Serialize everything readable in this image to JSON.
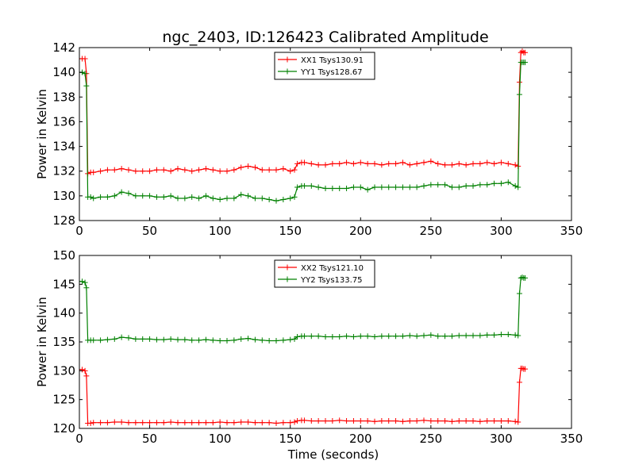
{
  "title": "ngc_2403, ID:126423 Calibrated Amplitude",
  "colors": {
    "series_a": "#ff0000",
    "series_b": "#008000",
    "axis": "#000000",
    "background": "#ffffff"
  },
  "chart_data": [
    {
      "type": "line",
      "title": "ngc_2403, ID:126423 Calibrated Amplitude",
      "xlabel": "",
      "ylabel": "Power in Kelvin",
      "xlim": [
        0,
        350
      ],
      "ylim": [
        128,
        142
      ],
      "xticks": [
        "0",
        "50",
        "100",
        "150",
        "200",
        "250",
        "300",
        "350"
      ],
      "yticks": [
        "128",
        "130",
        "132",
        "134",
        "136",
        "138",
        "140",
        "142"
      ],
      "grid": false,
      "legend_position": "top-center",
      "series": [
        {
          "name": "XX1 Tsys130.91",
          "color": "#ff0000",
          "x": [
            0,
            2,
            4,
            5,
            6,
            8,
            10,
            15,
            20,
            25,
            30,
            35,
            40,
            45,
            50,
            55,
            60,
            65,
            70,
            75,
            80,
            85,
            90,
            95,
            100,
            105,
            110,
            115,
            120,
            125,
            130,
            135,
            140,
            145,
            150,
            153,
            155,
            158,
            160,
            165,
            170,
            175,
            180,
            185,
            190,
            195,
            200,
            205,
            210,
            215,
            220,
            225,
            230,
            235,
            240,
            245,
            250,
            255,
            260,
            265,
            270,
            275,
            280,
            285,
            290,
            295,
            300,
            305,
            310,
            312,
            313,
            314,
            315,
            316,
            317
          ],
          "y": [
            141.1,
            141.1,
            141.1,
            139.9,
            131.8,
            131.9,
            131.9,
            132.0,
            132.1,
            132.1,
            132.2,
            132.1,
            132.0,
            132.0,
            132.0,
            132.1,
            132.1,
            132.0,
            132.2,
            132.1,
            132.0,
            132.1,
            132.2,
            132.1,
            132.0,
            132.0,
            132.1,
            132.3,
            132.4,
            132.3,
            132.1,
            132.1,
            132.1,
            132.2,
            132.0,
            132.1,
            132.6,
            132.7,
            132.7,
            132.6,
            132.5,
            132.5,
            132.6,
            132.6,
            132.7,
            132.6,
            132.7,
            132.6,
            132.6,
            132.5,
            132.6,
            132.6,
            132.7,
            132.5,
            132.6,
            132.7,
            132.8,
            132.6,
            132.5,
            132.5,
            132.6,
            132.5,
            132.6,
            132.6,
            132.7,
            132.6,
            132.7,
            132.6,
            132.5,
            132.4,
            139.2,
            141.6,
            141.7,
            141.6,
            141.6
          ]
        },
        {
          "name": "YY1 Tsys128.67",
          "color": "#008000",
          "x": [
            0,
            2,
            4,
            5,
            6,
            8,
            10,
            15,
            20,
            25,
            30,
            35,
            40,
            45,
            50,
            55,
            60,
            65,
            70,
            75,
            80,
            85,
            90,
            95,
            100,
            105,
            110,
            115,
            120,
            125,
            130,
            135,
            140,
            145,
            150,
            153,
            155,
            158,
            160,
            165,
            170,
            175,
            180,
            185,
            190,
            195,
            200,
            205,
            210,
            215,
            220,
            225,
            230,
            235,
            240,
            245,
            250,
            255,
            260,
            265,
            270,
            275,
            280,
            285,
            290,
            295,
            300,
            305,
            310,
            312,
            313,
            314,
            315,
            316,
            317
          ],
          "y": [
            140.0,
            140.0,
            139.9,
            138.9,
            129.9,
            129.9,
            129.8,
            129.9,
            129.9,
            130.0,
            130.3,
            130.2,
            130.0,
            130.0,
            130.0,
            129.9,
            129.9,
            130.0,
            129.8,
            129.8,
            129.9,
            129.8,
            130.0,
            129.8,
            129.7,
            129.8,
            129.8,
            130.1,
            130.0,
            129.8,
            129.8,
            129.7,
            129.6,
            129.7,
            129.8,
            129.9,
            130.7,
            130.8,
            130.8,
            130.8,
            130.7,
            130.6,
            130.6,
            130.6,
            130.6,
            130.7,
            130.7,
            130.5,
            130.7,
            130.7,
            130.7,
            130.7,
            130.7,
            130.7,
            130.7,
            130.8,
            130.9,
            130.9,
            130.9,
            130.7,
            130.7,
            130.8,
            130.8,
            130.9,
            130.9,
            131.0,
            131.0,
            131.1,
            130.8,
            130.7,
            138.2,
            140.8,
            140.8,
            140.8,
            140.8
          ]
        }
      ]
    },
    {
      "type": "line",
      "title": "",
      "xlabel": "Time (seconds)",
      "ylabel": "Power in Kelvin",
      "xlim": [
        0,
        350
      ],
      "ylim": [
        120,
        150
      ],
      "xticks": [
        "0",
        "50",
        "100",
        "150",
        "200",
        "250",
        "300",
        "350"
      ],
      "yticks": [
        "120",
        "125",
        "130",
        "135",
        "140",
        "145",
        "150"
      ],
      "grid": false,
      "legend_position": "top-center",
      "series": [
        {
          "name": "XX2 Tsys121.10",
          "color": "#ff0000",
          "x": [
            0,
            2,
            4,
            5,
            6,
            8,
            10,
            15,
            20,
            25,
            30,
            35,
            40,
            45,
            50,
            55,
            60,
            65,
            70,
            75,
            80,
            85,
            90,
            95,
            100,
            105,
            110,
            115,
            120,
            125,
            130,
            135,
            140,
            145,
            150,
            153,
            155,
            158,
            160,
            165,
            170,
            175,
            180,
            185,
            190,
            195,
            200,
            205,
            210,
            215,
            220,
            225,
            230,
            235,
            240,
            245,
            250,
            255,
            260,
            265,
            270,
            275,
            280,
            285,
            290,
            295,
            300,
            305,
            310,
            312,
            313,
            314,
            315,
            316,
            317
          ],
          "y": [
            130.2,
            130.2,
            130.0,
            129.1,
            120.9,
            120.9,
            121.0,
            121.0,
            121.0,
            121.1,
            121.1,
            121.0,
            121.0,
            121.0,
            121.0,
            121.0,
            121.0,
            121.1,
            121.0,
            121.0,
            121.0,
            121.0,
            121.0,
            121.0,
            121.1,
            121.0,
            121.0,
            121.1,
            121.1,
            121.0,
            121.0,
            121.0,
            120.9,
            121.0,
            121.0,
            121.1,
            121.3,
            121.4,
            121.4,
            121.3,
            121.3,
            121.3,
            121.3,
            121.4,
            121.3,
            121.3,
            121.3,
            121.3,
            121.2,
            121.3,
            121.3,
            121.3,
            121.2,
            121.3,
            121.3,
            121.4,
            121.3,
            121.3,
            121.3,
            121.2,
            121.3,
            121.3,
            121.3,
            121.2,
            121.3,
            121.3,
            121.3,
            121.3,
            121.2,
            121.1,
            128.0,
            130.4,
            130.4,
            130.3,
            130.3
          ]
        },
        {
          "name": "YY2 Tsys133.75",
          "color": "#008000",
          "x": [
            0,
            2,
            4,
            5,
            6,
            8,
            10,
            15,
            20,
            25,
            30,
            35,
            40,
            45,
            50,
            55,
            60,
            65,
            70,
            75,
            80,
            85,
            90,
            95,
            100,
            105,
            110,
            115,
            120,
            125,
            130,
            135,
            140,
            145,
            150,
            153,
            155,
            158,
            160,
            165,
            170,
            175,
            180,
            185,
            190,
            195,
            200,
            205,
            210,
            215,
            220,
            225,
            230,
            235,
            240,
            245,
            250,
            255,
            260,
            265,
            270,
            275,
            280,
            285,
            290,
            295,
            300,
            305,
            310,
            312,
            313,
            314,
            315,
            316,
            317
          ],
          "y": [
            145.5,
            145.5,
            145.3,
            144.4,
            135.3,
            135.3,
            135.3,
            135.3,
            135.4,
            135.5,
            135.8,
            135.7,
            135.5,
            135.5,
            135.5,
            135.4,
            135.4,
            135.5,
            135.4,
            135.4,
            135.3,
            135.3,
            135.4,
            135.3,
            135.2,
            135.2,
            135.3,
            135.5,
            135.6,
            135.4,
            135.3,
            135.2,
            135.2,
            135.3,
            135.4,
            135.5,
            135.9,
            136.0,
            136.0,
            136.0,
            136.0,
            135.9,
            135.9,
            135.9,
            136.0,
            135.9,
            136.0,
            136.0,
            135.9,
            136.0,
            136.0,
            136.0,
            136.0,
            136.1,
            136.0,
            136.1,
            136.2,
            136.0,
            136.0,
            136.0,
            136.1,
            136.1,
            136.1,
            136.1,
            136.2,
            136.2,
            136.3,
            136.3,
            136.2,
            136.1,
            143.4,
            146.1,
            146.2,
            146.1,
            146.1
          ]
        }
      ]
    }
  ]
}
